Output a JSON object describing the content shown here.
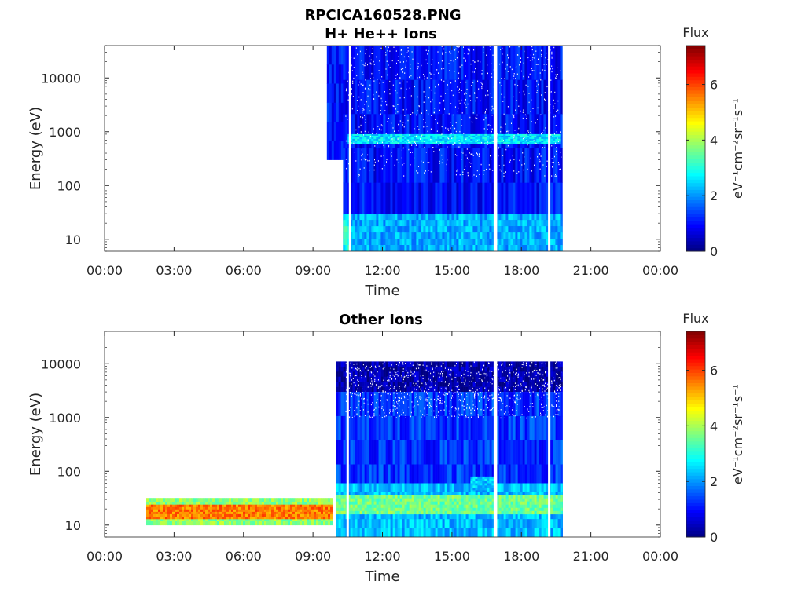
{
  "figure": {
    "title": "RPCICA160528.PNG"
  },
  "chart_data": [
    {
      "type": "heatmap",
      "title": "H+ He++ Ions",
      "xlabel": "Time",
      "ylabel": "Energy (eV)",
      "x_ticks": [
        "00:00",
        "03:00",
        "06:00",
        "09:00",
        "12:00",
        "15:00",
        "18:00",
        "21:00",
        "00:00"
      ],
      "x_range_hours": [
        0,
        24
      ],
      "y_scale": "log",
      "y_ticks": [
        10,
        100,
        1000,
        10000
      ],
      "y_tick_labels": [
        "10",
        "100",
        "1000",
        "10000"
      ],
      "ylim": [
        6,
        40000
      ],
      "colorbar": {
        "label": "Flux",
        "units": "eV⁻¹cm⁻²sr⁻¹s⁻¹",
        "ticks": [
          0,
          2,
          4,
          6
        ],
        "range": [
          0,
          7.4
        ],
        "colormap": "jet"
      },
      "regions": [
        {
          "t_start": 9.6,
          "t_end": 10.3,
          "e_min": 300,
          "e_max": 40000,
          "flux": 1.0
        },
        {
          "t_start": 10.3,
          "t_end": 19.75,
          "e_min": 6,
          "e_max": 40000,
          "flux": 1.0
        },
        {
          "t_start": 10.3,
          "t_end": 19.75,
          "e_min": 6,
          "e_max": 30,
          "flux": 2.2
        },
        {
          "t_start": 10.3,
          "t_end": 10.6,
          "e_min": 6,
          "e_max": 30,
          "flux": 3.0
        },
        {
          "t_start": 10.5,
          "t_end": 19.6,
          "e_min": 600,
          "e_max": 900,
          "flux": 2.6
        }
      ],
      "data_gaps_hours": [
        10.55,
        16.8,
        16.85,
        19.15
      ]
    },
    {
      "type": "heatmap",
      "title": "Other Ions",
      "xlabel": "Time",
      "ylabel": "Energy (eV)",
      "x_ticks": [
        "00:00",
        "03:00",
        "06:00",
        "09:00",
        "12:00",
        "15:00",
        "18:00",
        "21:00",
        "00:00"
      ],
      "x_range_hours": [
        0,
        24
      ],
      "y_scale": "log",
      "y_ticks": [
        10,
        100,
        1000,
        10000
      ],
      "y_tick_labels": [
        "10",
        "100",
        "1000",
        "10000"
      ],
      "ylim": [
        6,
        40000
      ],
      "colorbar": {
        "label": "Flux",
        "units": "eV⁻¹cm⁻²sr⁻¹s⁻¹",
        "ticks": [
          0,
          2,
          4,
          6
        ],
        "range": [
          0,
          7.4
        ],
        "colormap": "jet"
      },
      "regions": [
        {
          "t_start": 1.8,
          "t_end": 9.8,
          "e_min": 10,
          "e_max": 32,
          "flux": 3.8
        },
        {
          "t_start": 1.8,
          "t_end": 9.8,
          "e_min": 13,
          "e_max": 24,
          "flux": 5.6
        },
        {
          "t_start": 10.0,
          "t_end": 19.75,
          "e_min": 3000,
          "e_max": 11000,
          "flux": 0.3
        },
        {
          "t_start": 10.0,
          "t_end": 19.75,
          "e_min": 6,
          "e_max": 3000,
          "flux": 1.3
        },
        {
          "t_start": 10.0,
          "t_end": 19.75,
          "e_min": 6,
          "e_max": 60,
          "flux": 2.3
        },
        {
          "t_start": 10.0,
          "t_end": 19.75,
          "e_min": 16,
          "e_max": 36,
          "flux": 3.6
        },
        {
          "t_start": 15.8,
          "t_end": 16.8,
          "e_min": 45,
          "e_max": 80,
          "flux": 2.4
        }
      ],
      "data_gaps_hours": [
        10.45,
        16.8,
        16.85,
        19.15
      ]
    }
  ]
}
